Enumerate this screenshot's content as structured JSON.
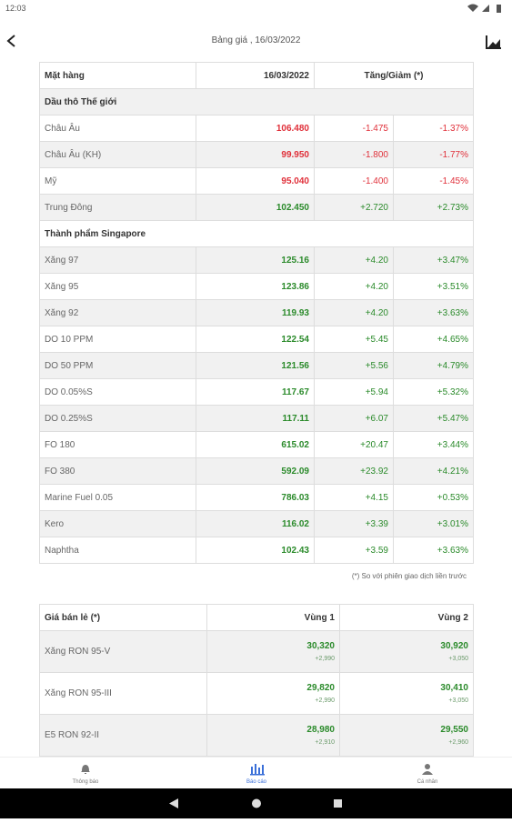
{
  "status": {
    "time": "12:03"
  },
  "header": {
    "title": "Bảng giá , 16/03/2022"
  },
  "table1": {
    "columns": [
      "Mặt hàng",
      "16/03/2022",
      "Tăng/Giảm (*)"
    ],
    "sections": [
      {
        "name": "Dầu thô Thế giới",
        "rows": [
          [
            "Châu Âu",
            "106.480",
            "-1.475",
            "-1.37%"
          ],
          [
            "Châu Âu (KH)",
            "99.950",
            "-1.800",
            "-1.77%"
          ],
          [
            "Mỹ",
            "95.040",
            "-1.400",
            "-1.45%"
          ],
          [
            "Trung Đông",
            "102.450",
            "+2.720",
            "+2.73%"
          ]
        ]
      },
      {
        "name": "Thành phẩm Singapore",
        "rows": [
          [
            "Xăng 97",
            "125.16",
            "+4.20",
            "+3.47%"
          ],
          [
            "Xăng 95",
            "123.86",
            "+4.20",
            "+3.51%"
          ],
          [
            "Xăng 92",
            "119.93",
            "+4.20",
            "+3.63%"
          ],
          [
            "DO 10 PPM",
            "122.54",
            "+5.45",
            "+4.65%"
          ],
          [
            "DO 50 PPM",
            "121.56",
            "+5.56",
            "+4.79%"
          ],
          [
            "DO 0.05%S",
            "117.67",
            "+5.94",
            "+5.32%"
          ],
          [
            "DO 0.25%S",
            "117.11",
            "+6.07",
            "+5.47%"
          ],
          [
            "FO 180",
            "615.02",
            "+20.47",
            "+3.44%"
          ],
          [
            "FO 380",
            "592.09",
            "+23.92",
            "+4.21%"
          ],
          [
            "Marine Fuel 0.05",
            "786.03",
            "+4.15",
            "+0.53%"
          ],
          [
            "Kero",
            "116.02",
            "+3.39",
            "+3.01%"
          ],
          [
            "Naphtha",
            "102.43",
            "+3.59",
            "+3.63%"
          ]
        ]
      }
    ],
    "note": "(*) So với phiên giao dịch liền trước"
  },
  "table2": {
    "columns": [
      "Giá bán lẻ (*)",
      "Vùng 1",
      "Vùng 2"
    ],
    "rows": [
      {
        "name": "Xăng RON 95-V",
        "v1": "30,320",
        "c1": "+2,990",
        "v2": "30,920",
        "c2": "+3,050"
      },
      {
        "name": "Xăng RON 95-III",
        "v1": "29,820",
        "c1": "+2,990",
        "v2": "30,410",
        "c2": "+3,050"
      },
      {
        "name": "E5 RON 92-II",
        "v1": "28,980",
        "c1": "+2,910",
        "v2": "29,550",
        "c2": "+2,960"
      }
    ]
  },
  "nav": [
    {
      "label": "Thông báo"
    },
    {
      "label": "Báo cáo",
      "active": true
    },
    {
      "label": "Cá nhân"
    }
  ]
}
